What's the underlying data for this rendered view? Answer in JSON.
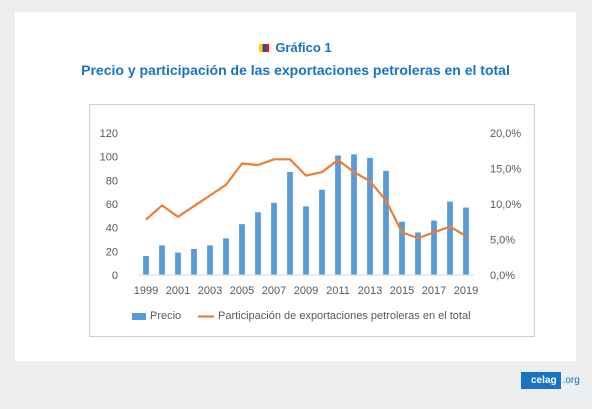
{
  "header": {
    "figure_label": "Gráfico 1",
    "title": "Precio y participación de las exportaciones petroleras en el total"
  },
  "brand": {
    "name": "celag",
    "tld": ".org"
  },
  "colors": {
    "bar": "#5b9bd5",
    "line": "#ed7d31",
    "title": "#1a73c2",
    "text": "#595959"
  },
  "chart_data": {
    "type": "bar",
    "x": [
      1999,
      2000,
      2001,
      2002,
      2003,
      2004,
      2005,
      2006,
      2007,
      2008,
      2009,
      2010,
      2011,
      2012,
      2013,
      2014,
      2015,
      2016,
      2017,
      2018,
      2019
    ],
    "x_tick_labels": [
      "1999",
      "2001",
      "2003",
      "2005",
      "2007",
      "2009",
      "2011",
      "2013",
      "2015",
      "2017",
      "2019"
    ],
    "y_left_ticks": [
      "0",
      "20",
      "40",
      "60",
      "80",
      "100",
      "120"
    ],
    "y_right_ticks": [
      "0,0%",
      "5,0%",
      "10,0%",
      "15,0%",
      "20,0%"
    ],
    "ylim_left": [
      0,
      120
    ],
    "ylim_right": [
      0,
      0.2
    ],
    "grid": false,
    "legend_position": "bottom",
    "series": [
      {
        "name": "Precio",
        "type": "bar",
        "axis": "left",
        "values": [
          16,
          25,
          19,
          22,
          25,
          31,
          43,
          53,
          61,
          87,
          58,
          72,
          101,
          102,
          99,
          88,
          45,
          36,
          46,
          62,
          57
        ]
      },
      {
        "name": "Participación de exportaciones petroleras en el total",
        "type": "line",
        "axis": "right",
        "values": [
          0.078,
          0.098,
          0.082,
          0.097,
          0.112,
          0.127,
          0.157,
          0.155,
          0.163,
          0.163,
          0.14,
          0.145,
          0.162,
          0.145,
          0.132,
          0.105,
          0.06,
          0.052,
          0.06,
          0.068,
          0.055
        ]
      }
    ]
  }
}
